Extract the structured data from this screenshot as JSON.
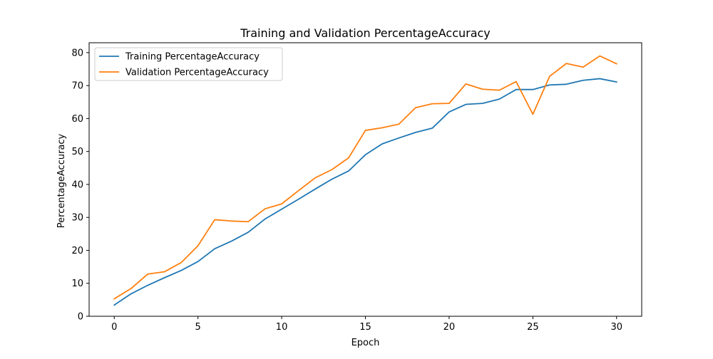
{
  "chart_data": {
    "type": "line",
    "title": "Training and Validation PercentageAccuracy",
    "xlabel": "Epoch",
    "ylabel": "PercentageAccuracy",
    "xlim": [
      -1.5,
      31.5
    ],
    "ylim": [
      0,
      83
    ],
    "xticks": [
      0,
      5,
      10,
      15,
      20,
      25,
      30
    ],
    "yticks": [
      0,
      10,
      20,
      30,
      40,
      50,
      60,
      70,
      80
    ],
    "grid": false,
    "legend_position": "upper-left",
    "x": [
      0,
      1,
      2,
      3,
      4,
      5,
      6,
      7,
      8,
      9,
      10,
      11,
      12,
      13,
      14,
      15,
      16,
      17,
      18,
      19,
      20,
      21,
      22,
      23,
      24,
      25,
      26,
      27,
      28,
      29,
      30
    ],
    "series": [
      {
        "name": "Training PercentageAccuracy",
        "color": "#1f77b4",
        "values": [
          3.4,
          6.8,
          9.4,
          11.7,
          13.9,
          16.6,
          20.5,
          22.8,
          25.5,
          29.5,
          32.5,
          35.5,
          38.6,
          41.6,
          44.1,
          49.0,
          52.3,
          54.1,
          55.8,
          57.1,
          62.0,
          64.3,
          64.6,
          65.9,
          68.8,
          68.8,
          70.2,
          70.4,
          71.6,
          72.1,
          71.1
        ]
      },
      {
        "name": "Validation PercentageAccuracy",
        "color": "#ff7f0e",
        "values": [
          5.3,
          8.4,
          12.8,
          13.5,
          16.3,
          21.4,
          29.3,
          28.9,
          28.7,
          32.6,
          34.1,
          38.1,
          42.0,
          44.5,
          48.1,
          56.4,
          57.2,
          58.3,
          63.3,
          64.5,
          64.6,
          70.5,
          68.9,
          68.6,
          71.2,
          61.3,
          72.8,
          76.7,
          75.6,
          79.0,
          76.6
        ]
      }
    ]
  }
}
